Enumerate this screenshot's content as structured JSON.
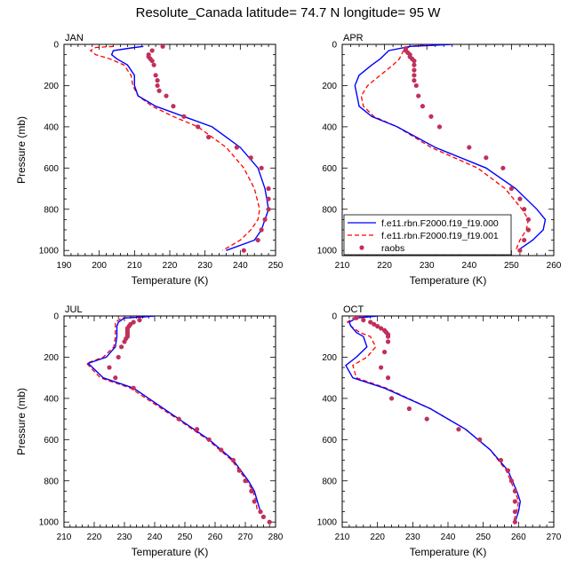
{
  "title": "Resolute_Canada  latitude= 74.7 N longitude= 95 W",
  "colors": {
    "model_a": "#0000ff",
    "model_b": "#ff0000",
    "raobs": "#c0305a"
  },
  "legend": {
    "entries": [
      {
        "label": "f.e11.rbn.F2000.f19_f19.000",
        "style": "solid-line",
        "color": "#0000ff"
      },
      {
        "label": "f.e11.rbn.F2000.f19_f19.001",
        "style": "dashed-line",
        "color": "#ff0000"
      },
      {
        "label": "raobs",
        "style": "dot",
        "color": "#c0305a"
      }
    ]
  },
  "chart_data": [
    {
      "type": "line",
      "panel": "JAN",
      "xlabel": "Temperature (K)",
      "ylabel": "Pressure (mb)",
      "xlim": [
        190,
        250
      ],
      "ylim": [
        0,
        1025
      ],
      "y_inverted": true,
      "xticks": [
        190,
        200,
        210,
        220,
        230,
        240,
        250
      ],
      "yticks": [
        0,
        200,
        400,
        600,
        800,
        1000
      ],
      "series": [
        {
          "name": "f.e11.rbn.F2000.f19_f19.000",
          "style": "solid",
          "x": [
            212.5,
            210,
            204,
            203.5,
            205,
            208,
            210,
            210,
            211,
            216,
            224,
            232,
            240,
            245,
            247,
            248,
            247,
            246,
            244,
            236
          ],
          "y": [
            10,
            15,
            30,
            50,
            70,
            100,
            150,
            200,
            250,
            300,
            350,
            400,
            500,
            600,
            700,
            800,
            850,
            900,
            950,
            1000
          ]
        },
        {
          "name": "f.e11.rbn.F2000.f19_f19.001",
          "style": "dashed",
          "x": [
            204,
            199,
            197.5,
            199,
            203,
            207,
            209,
            209.5,
            211,
            215,
            221,
            228,
            236,
            241,
            244,
            245.5,
            245,
            243,
            240,
            235
          ]
        },
        {
          "name": "raobs",
          "style": "dots",
          "x": [
            218,
            215,
            214,
            214,
            214.5,
            215,
            215.5,
            216,
            216.5,
            216.5,
            217,
            219,
            221,
            224,
            228,
            231,
            239,
            243,
            246,
            248,
            248,
            248,
            247,
            246,
            245,
            241
          ],
          "y": [
            10,
            30,
            50,
            60,
            70,
            80,
            100,
            150,
            175,
            200,
            225,
            250,
            300,
            350,
            400,
            450,
            500,
            550,
            600,
            700,
            750,
            800,
            850,
            900,
            950,
            1000
          ]
        }
      ]
    },
    {
      "type": "line",
      "panel": "APR",
      "xlabel": "Temperature (K)",
      "ylabel": "",
      "xlim": [
        210,
        260
      ],
      "ylim": [
        0,
        1025
      ],
      "y_inverted": true,
      "xticks": [
        210,
        220,
        230,
        240,
        250,
        260
      ],
      "yticks": [
        0,
        200,
        400,
        600,
        800,
        1000
      ],
      "series": [
        {
          "name": "f.e11.rbn.F2000.f19_f19.000",
          "style": "solid",
          "x": [
            236,
            226,
            221,
            220,
            219,
            217,
            214,
            213,
            213.5,
            214,
            217,
            223,
            232,
            244,
            251,
            256,
            258,
            257.5,
            255,
            251.5
          ],
          "y": [
            0,
            10,
            30,
            50,
            70,
            100,
            150,
            200,
            250,
            300,
            350,
            400,
            500,
            600,
            700,
            800,
            850,
            900,
            950,
            1000
          ]
        },
        {
          "name": "f.e11.rbn.F2000.f19_f19.001",
          "style": "dashed",
          "x": [
            231,
            226,
            224.5,
            224,
            223.5,
            222,
            219,
            216,
            214.5,
            215,
            217.5,
            223,
            231,
            242,
            248.5,
            252.5,
            254,
            253.5,
            252,
            251
          ]
        },
        {
          "name": "raobs",
          "style": "dots",
          "x": [
            225,
            225,
            225.5,
            226,
            226,
            226.5,
            227,
            227,
            227,
            227,
            227,
            227.5,
            228,
            229,
            231,
            233,
            240,
            244,
            248,
            250,
            252,
            253,
            254,
            254,
            253,
            252
          ],
          "y": [
            20,
            30,
            40,
            50,
            60,
            70,
            80,
            100,
            125,
            150,
            175,
            200,
            250,
            300,
            350,
            400,
            500,
            550,
            600,
            700,
            750,
            800,
            850,
            900,
            950,
            1000
          ]
        }
      ]
    },
    {
      "type": "line",
      "panel": "JUL",
      "xlabel": "Temperature (K)",
      "ylabel": "Pressure (mb)",
      "xlim": [
        210,
        280
      ],
      "ylim": [
        0,
        1025
      ],
      "y_inverted": true,
      "xticks": [
        210,
        220,
        230,
        240,
        250,
        260,
        270,
        280
      ],
      "yticks": [
        0,
        200,
        400,
        600,
        800,
        1000
      ],
      "series": [
        {
          "name": "f.e11.rbn.F2000.f19_f19.000",
          "style": "solid",
          "x": [
            240,
            236,
            230,
            228,
            227.5,
            227.5,
            227.5,
            227,
            224,
            218,
            223,
            233,
            248,
            258,
            266,
            271,
            273,
            274,
            275
          ],
          "y": [
            0,
            5,
            10,
            30,
            50,
            80,
            100,
            150,
            200,
            230,
            300,
            350,
            500,
            600,
            700,
            800,
            850,
            900,
            950
          ]
        },
        {
          "name": "f.e11.rbn.F2000.f19_f19.001",
          "style": "dashed",
          "x": [
            238,
            234,
            229,
            227,
            227,
            227,
            227,
            226.5,
            223,
            217.5,
            222,
            232,
            247.5,
            257.5,
            265.5,
            270.5,
            272.5,
            273.5,
            274
          ]
        },
        {
          "name": "raobs",
          "style": "dots",
          "x": [
            235,
            233,
            232,
            231.5,
            231,
            231,
            231,
            231,
            231,
            230.5,
            230,
            229,
            228,
            225,
            227,
            233,
            248,
            254,
            258,
            262,
            266,
            268,
            270,
            272,
            273,
            275,
            276,
            278
          ],
          "y": [
            20,
            30,
            40,
            50,
            60,
            70,
            80,
            90,
            100,
            110,
            125,
            150,
            200,
            250,
            300,
            350,
            500,
            550,
            600,
            650,
            700,
            750,
            800,
            850,
            900,
            950,
            975,
            1000
          ]
        }
      ]
    },
    {
      "type": "line",
      "panel": "OCT",
      "xlabel": "Temperature (K)",
      "ylabel": "",
      "xlim": [
        210,
        270
      ],
      "ylim": [
        0,
        1025
      ],
      "y_inverted": true,
      "xticks": [
        210,
        220,
        230,
        240,
        250,
        260,
        270
      ],
      "yticks": [
        0,
        200,
        400,
        600,
        800,
        1000
      ],
      "series": [
        {
          "name": "f.e11.rbn.F2000.f19_f19.000",
          "style": "solid",
          "x": [
            220,
            214,
            212,
            212.5,
            214,
            216,
            217,
            214,
            211,
            213,
            222,
            235,
            245,
            252,
            257,
            259.5,
            260.5,
            260,
            259
          ],
          "y": [
            0,
            10,
            30,
            50,
            80,
            100,
            150,
            200,
            240,
            300,
            350,
            450,
            550,
            650,
            750,
            850,
            900,
            950,
            1000
          ]
        },
        {
          "name": "f.e11.rbn.F2000.f19_f19.001",
          "style": "dashed",
          "x": [
            216,
            213,
            211.5,
            212.5,
            215,
            218,
            219.5,
            217,
            213,
            214,
            222.5,
            235,
            245,
            252,
            256.5,
            259,
            260,
            259.5,
            258.5
          ]
        },
        {
          "name": "raobs",
          "style": "dots",
          "x": [
            214,
            216,
            218,
            219,
            220,
            221,
            222,
            222.5,
            223,
            223,
            223,
            222,
            221,
            223,
            224,
            229,
            234,
            243,
            249,
            255,
            257,
            258,
            259,
            259,
            259,
            259
          ],
          "y": [
            10,
            20,
            30,
            40,
            50,
            60,
            70,
            80,
            90,
            100,
            125,
            175,
            250,
            300,
            400,
            450,
            500,
            550,
            600,
            700,
            750,
            800,
            850,
            900,
            950,
            1000
          ]
        }
      ]
    }
  ]
}
